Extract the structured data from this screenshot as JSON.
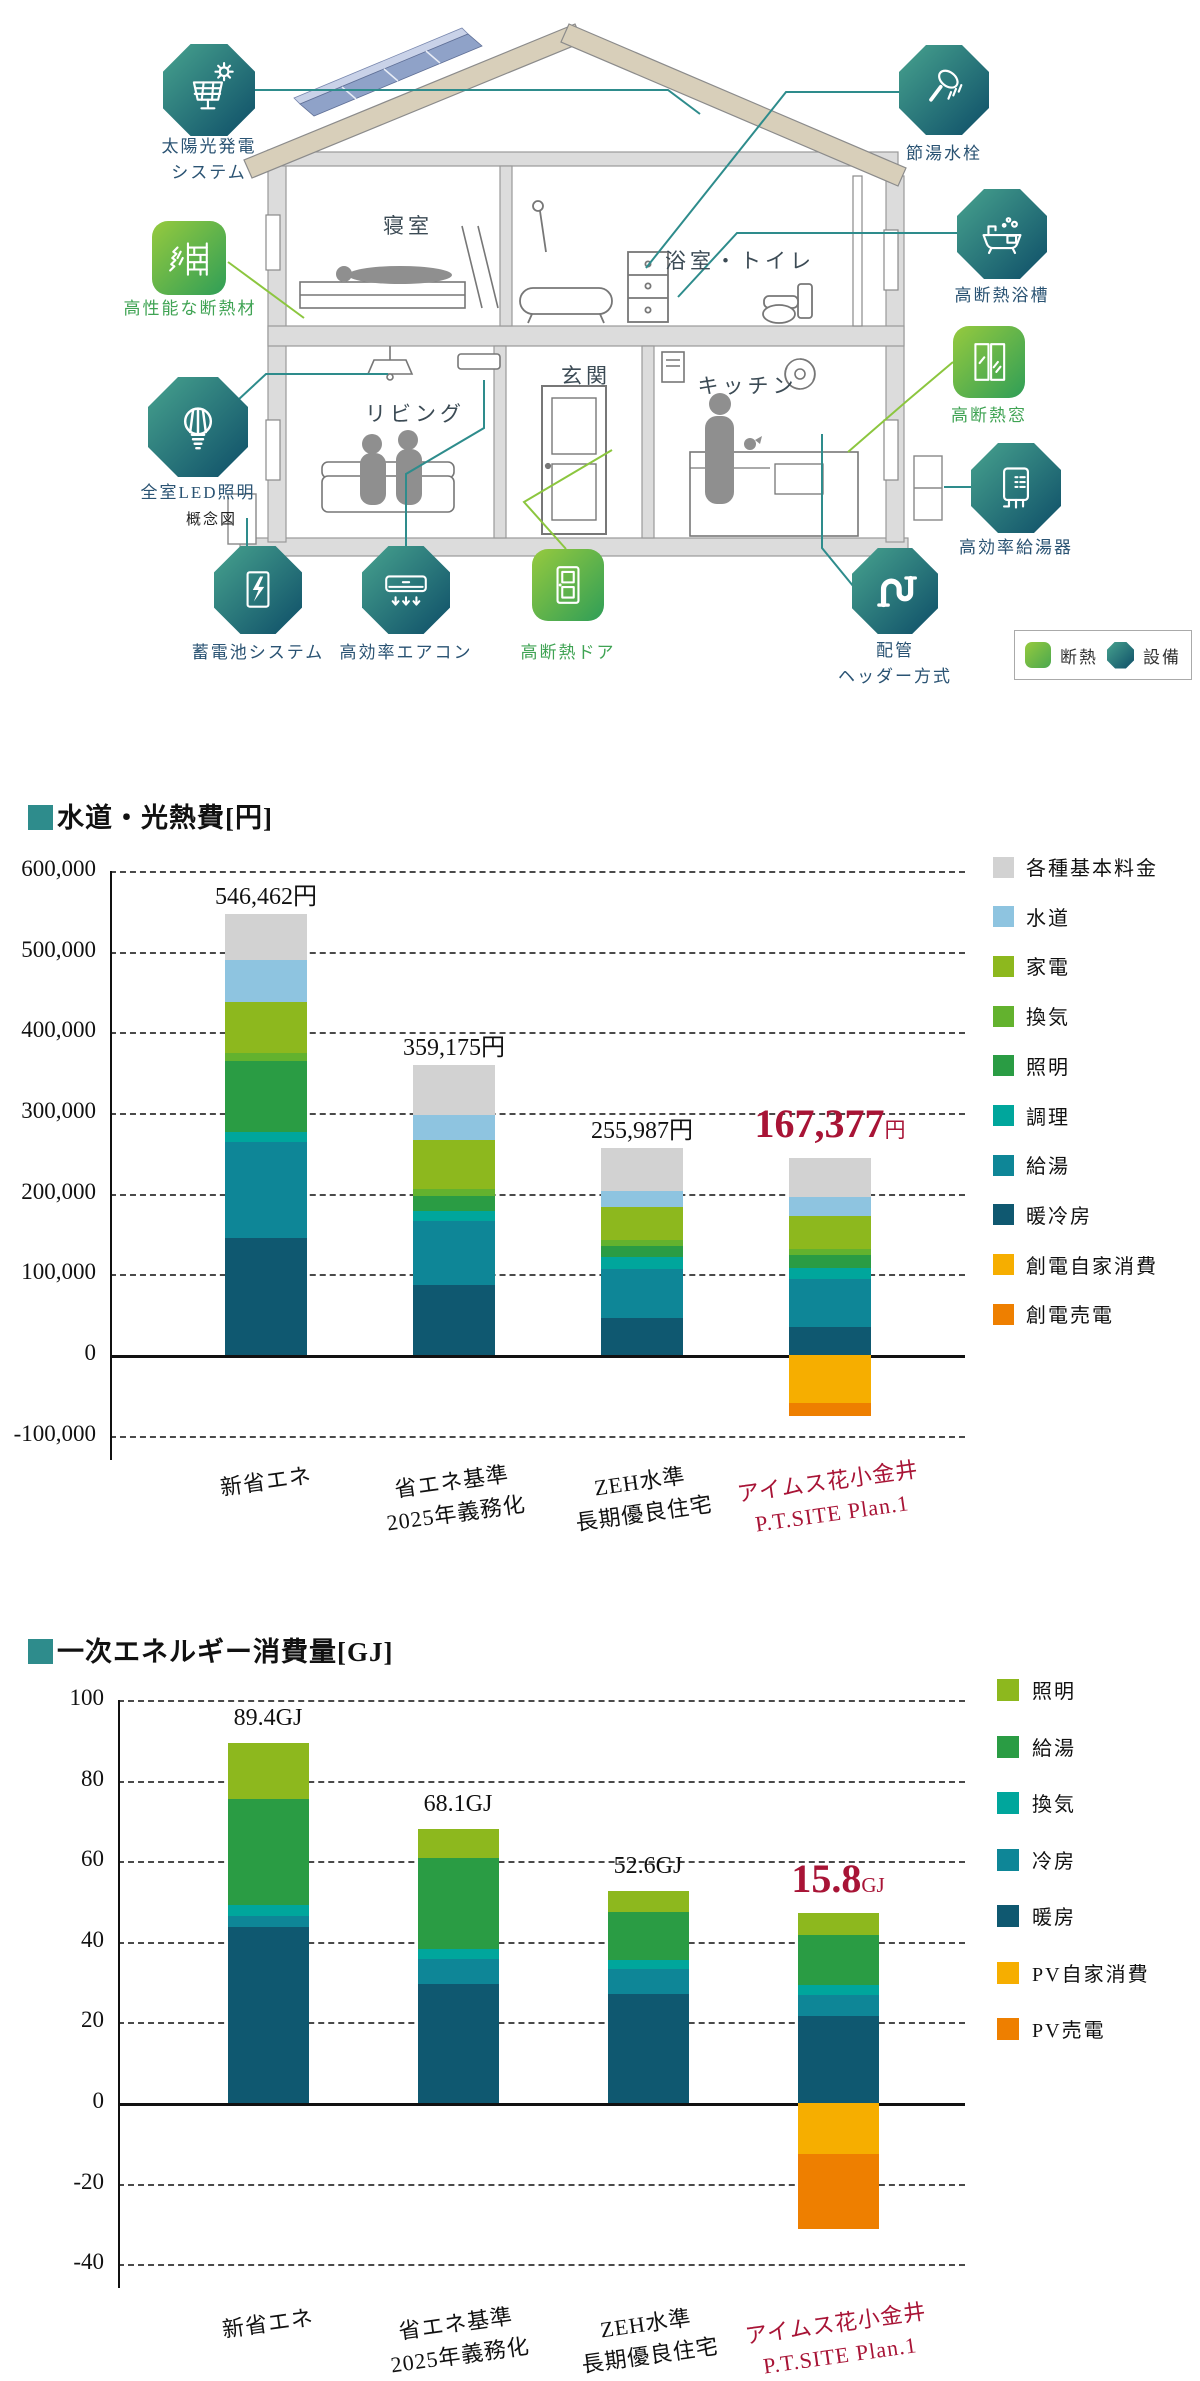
{
  "diagram": {
    "note": "概念図",
    "rooms": [
      "寝室",
      "浴室・トイレ",
      "リビング",
      "玄関",
      "キッチン"
    ],
    "features": [
      {
        "id": "solar-power-system",
        "label": "太陽光発電\nシステム",
        "category": "equipment"
      },
      {
        "id": "insulation-material",
        "label": "高性能な断熱材",
        "category": "insulation"
      },
      {
        "id": "led-lighting",
        "label": "全室LED照明",
        "category": "equipment"
      },
      {
        "id": "storage-battery",
        "label": "蓄電池システム",
        "category": "equipment"
      },
      {
        "id": "efficient-aircon",
        "label": "高効率エアコン",
        "category": "equipment"
      },
      {
        "id": "insulated-door",
        "label": "高断熱ドア",
        "category": "insulation"
      },
      {
        "id": "piping-header",
        "label": "配管\nヘッダー方式",
        "category": "equipment"
      },
      {
        "id": "water-saving-faucet",
        "label": "節湯水栓",
        "category": "equipment"
      },
      {
        "id": "insulated-bathtub",
        "label": "高断熱浴槽",
        "category": "equipment"
      },
      {
        "id": "insulated-window",
        "label": "高断熱窓",
        "category": "insulation"
      },
      {
        "id": "efficient-water-heater",
        "label": "高効率給湯器",
        "category": "equipment"
      }
    ],
    "legend": {
      "insulation_label": "断熱",
      "equipment_label": "設備"
    }
  },
  "colors": {
    "teal_accent": "#2e8c8c",
    "red_highlight": "#a81436",
    "teal_icon_gradient": [
      "#47a28e",
      "#0e4e68"
    ],
    "green_icon_gradient": [
      "#96ca3e",
      "#2f9e57"
    ],
    "connector_teal": "#2e8c8c",
    "connector_green": "#8cc63f"
  },
  "chart_data": [
    {
      "type": "bar",
      "stacked": true,
      "title": "水道・光熱費[円]",
      "unit": "円",
      "ylim": [
        -100000,
        600000
      ],
      "y_ticks": [
        600000,
        500000,
        400000,
        300000,
        200000,
        100000,
        0,
        -100000
      ],
      "grid": "dashed-horizontal",
      "legend_position": "right",
      "categories": [
        "新省エネ",
        "省エネ基準\n2025年義務化",
        "ZEH水準\n長期優良住宅",
        "アイムス花小金井\nP.T.SITE Plan.1"
      ],
      "highlight_category": 3,
      "totals": [
        546462,
        359175,
        255987,
        167377
      ],
      "total_labels": [
        "546,462",
        "359,175",
        "255,987",
        "167,377"
      ],
      "series": [
        {
          "name": "各種基本料金",
          "color": "#d2d2d2",
          "values": [
            57462,
            61375,
            53187,
            48200
          ]
        },
        {
          "name": "水道",
          "color": "#8ec4e0",
          "values": [
            51000,
            31300,
            19800,
            22800
          ]
        },
        {
          "name": "家電",
          "color": "#8db81e",
          "values": [
            64000,
            60600,
            40100,
            41200
          ]
        },
        {
          "name": "換気",
          "color": "#63b22e",
          "values": [
            10000,
            9200,
            8000,
            8000
          ]
        },
        {
          "name": "照明",
          "color": "#2a9c44",
          "values": [
            88000,
            18700,
            14000,
            15000
          ]
        },
        {
          "name": "調理",
          "color": "#00a69c",
          "values": [
            12000,
            11700,
            14500,
            14500
          ]
        },
        {
          "name": "給湯",
          "color": "#0e8697",
          "values": [
            119000,
            79300,
            61000,
            59700
          ]
        },
        {
          "name": "暖冷房",
          "color": "#0f5870",
          "values": [
            145000,
            87000,
            45400,
            34177
          ]
        },
        {
          "name": "創電自家消費",
          "color": "#f6ae00",
          "values": [
            0,
            0,
            0,
            -59800
          ]
        },
        {
          "name": "創電売電",
          "color": "#ee7f00",
          "values": [
            0,
            0,
            0,
            -16400
          ]
        }
      ]
    },
    {
      "type": "bar",
      "stacked": true,
      "title": "一次エネルギー消費量[GJ]",
      "unit": "GJ",
      "ylim": [
        -40,
        100
      ],
      "y_ticks": [
        100,
        80,
        60,
        40,
        20,
        0,
        -20,
        -40
      ],
      "grid": "dashed-horizontal",
      "legend_position": "right",
      "categories": [
        "新省エネ",
        "省エネ基準\n2025年義務化",
        "ZEH水準\n長期優良住宅",
        "アイムス花小金井\nP.T.SITE Plan.1"
      ],
      "highlight_category": 3,
      "totals": [
        89.4,
        68.1,
        52.6,
        15.8
      ],
      "total_labels": [
        "89.4",
        "68.1",
        "52.6",
        "15.8"
      ],
      "series": [
        {
          "name": "照明",
          "color": "#8db81e",
          "values": [
            13.9,
            7.2,
            5.2,
            5.3
          ]
        },
        {
          "name": "給湯",
          "color": "#2a9c44",
          "values": [
            26.4,
            22.7,
            12.0,
            12.4
          ]
        },
        {
          "name": "換気",
          "color": "#00a69c",
          "values": [
            2.7,
            2.5,
            2.1,
            2.7
          ]
        },
        {
          "name": "冷房",
          "color": "#0e8697",
          "values": [
            2.7,
            6.2,
            6.2,
            5.2
          ]
        },
        {
          "name": "暖房",
          "color": "#0f5870",
          "values": [
            43.7,
            29.5,
            27.1,
            21.5
          ]
        },
        {
          "name": "PV自家消費",
          "color": "#f6ae00",
          "values": [
            0,
            0,
            0,
            -12.6
          ]
        },
        {
          "name": "PV売電",
          "color": "#ee7f00",
          "values": [
            0,
            0,
            0,
            -18.7
          ]
        }
      ]
    }
  ]
}
